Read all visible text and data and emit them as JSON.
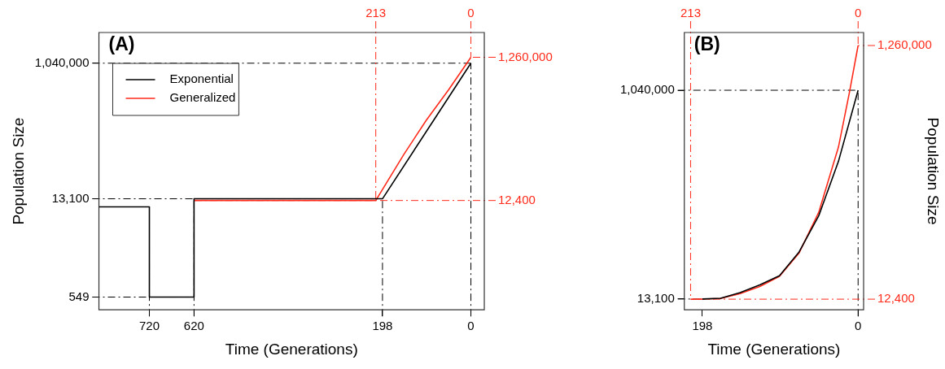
{
  "chart_data": [
    {
      "type": "line",
      "xlabel": "Time (Generations)",
      "ylabel": "Population Size",
      "log": true,
      "grid": false,
      "legend": "top left",
      "marker": "none",
      "line_style": "solid",
      "annotations": [
        "(A)"
      ],
      "xlim": [
        833,
        -30
      ],
      "xticks": [
        720,
        620,
        198,
        0
      ],
      "ylim": [
        364,
        2800000
      ],
      "yticks": [
        {
          "value": 549,
          "label": "549"
        },
        {
          "value": 13100,
          "label": "13,100"
        },
        {
          "value": 1040000,
          "label": "1,040,000"
        }
      ],
      "series": [
        {
          "name": "Exponential",
          "color": "#000000",
          "x": [
            833,
            720,
            720,
            620,
            620,
            198,
            0
          ],
          "values": [
            10100,
            10100,
            549,
            549,
            13100,
            13100,
            1040000
          ]
        },
        {
          "name": "Generalized",
          "color": "#ff2a1a",
          "x": [
            620,
            213,
            150,
            100,
            50,
            0
          ],
          "values": [
            12400,
            12400,
            55000,
            165000,
            440000,
            1260000
          ]
        }
      ],
      "ref_lines": [
        {
          "axis": "y",
          "value": 549,
          "color": "#000000",
          "line_style": "dashed"
        },
        {
          "axis": "y",
          "value": 13100,
          "color": "#000000",
          "line_style": "dashed"
        },
        {
          "axis": "y",
          "value": 1040000,
          "color": "#000000",
          "line_style": "dashed"
        },
        {
          "axis": "x",
          "value": 720,
          "color": "#000000",
          "line_style": "dashed"
        },
        {
          "axis": "x",
          "value": 620,
          "color": "#000000",
          "line_style": "dashed"
        },
        {
          "axis": "x",
          "value": 198,
          "color": "#000000",
          "line_style": "dashed"
        },
        {
          "axis": "x",
          "value": 213,
          "label": "213",
          "color": "#ff2a1a",
          "line_style": "dashed"
        },
        {
          "axis": "x",
          "value": 0,
          "label": "0",
          "color": "#ff2a1a",
          "line_style": "dashed"
        },
        {
          "axis": "x",
          "value": 0,
          "color": "#000000",
          "line_style": "dashed"
        },
        {
          "axis": "y",
          "value": 12400,
          "label": "12,400",
          "color": "#ff2a1a",
          "line_style": "dashed"
        },
        {
          "axis": "y",
          "value": 1260000,
          "label": "1,260,000",
          "color": "#ff2a1a",
          "line_style": "dashed"
        }
      ]
    },
    {
      "type": "line",
      "xlabel": "Time (Generations)",
      "ylabel": "Population Size",
      "grid": false,
      "marker": "none",
      "line_style": "solid",
      "annotations": [
        "(B)"
      ],
      "xlim": [
        221,
        -7
      ],
      "xticks": [
        198,
        0
      ],
      "ylim": [
        -40000,
        1324000
      ],
      "yticks": [
        {
          "value": 13100,
          "label": "13,100"
        },
        {
          "value": 1040000,
          "label": "1,040,000"
        }
      ],
      "series": [
        {
          "color": "#000000",
          "x": [
            198,
            175,
            150,
            125,
            100,
            75,
            50,
            25,
            0
          ],
          "values": [
            13100,
            17000,
            45000,
            83000,
            128000,
            245000,
            423000,
            690000,
            1040000
          ]
        },
        {
          "color": "#ff2a1a",
          "x": [
            213,
            198,
            175,
            150,
            125,
            100,
            75,
            50,
            25,
            11,
            0
          ],
          "values": [
            12400,
            12600,
            16000,
            40000,
            75000,
            125000,
            240000,
            440000,
            760000,
            1030000,
            1260000
          ]
        }
      ],
      "ref_lines": [
        {
          "axis": "y",
          "value": 13100,
          "color": "#000000",
          "line_style": "dashed"
        },
        {
          "axis": "y",
          "value": 1040000,
          "color": "#000000",
          "line_style": "dashed"
        },
        {
          "axis": "x",
          "value": 0,
          "color": "#000000",
          "line_style": "dashed"
        },
        {
          "axis": "x",
          "value": 213,
          "label": "213",
          "color": "#ff2a1a",
          "line_style": "dashed"
        },
        {
          "axis": "x",
          "value": 0,
          "label": "0",
          "color": "#ff2a1a",
          "line_style": "dashed"
        },
        {
          "axis": "y",
          "value": 12400,
          "label": "12,400",
          "color": "#ff2a1a",
          "line_style": "dashed"
        },
        {
          "axis": "y",
          "value": 1260000,
          "label": "1,260,000",
          "color": "#ff2a1a",
          "line_style": "dashed"
        }
      ]
    }
  ]
}
